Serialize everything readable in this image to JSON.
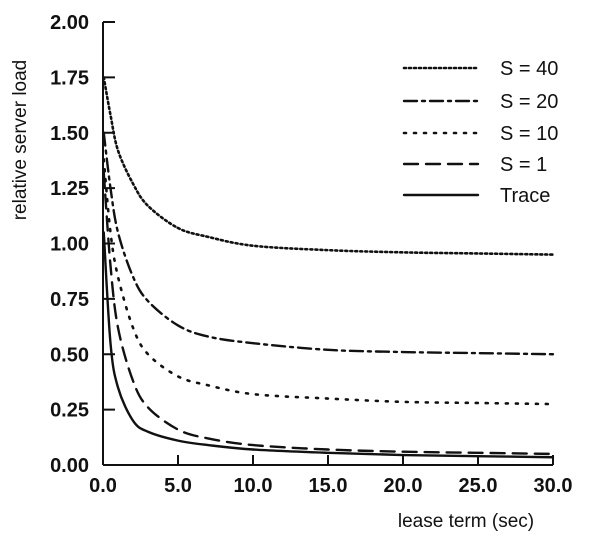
{
  "chart_data": {
    "type": "line",
    "title": "",
    "xlabel": "lease term (sec)",
    "ylabel": "relative server load",
    "xlim": [
      0,
      30
    ],
    "ylim": [
      0,
      2
    ],
    "x_ticks": [
      "0.0",
      "5.0",
      "10.0",
      "15.0",
      "20.0",
      "25.0",
      "30.0"
    ],
    "y_ticks": [
      "0.00",
      "0.25",
      "0.50",
      "0.75",
      "1.00",
      "1.25",
      "1.50",
      "1.75",
      "2.00"
    ],
    "grid": false,
    "legend_position": "top-right",
    "series": [
      {
        "name": "S = 40",
        "style": "dotted-dense",
        "x": [
          0.05,
          0.5,
          1,
          2,
          3,
          5,
          7,
          10,
          15,
          20,
          25,
          30
        ],
        "y": [
          1.75,
          1.58,
          1.42,
          1.27,
          1.17,
          1.07,
          1.03,
          0.99,
          0.97,
          0.96,
          0.955,
          0.95
        ]
      },
      {
        "name": "S = 20",
        "style": "dash-dot",
        "x": [
          0.05,
          0.5,
          1,
          2,
          3,
          5,
          7,
          10,
          15,
          20,
          25,
          30
        ],
        "y": [
          1.5,
          1.25,
          1.05,
          0.85,
          0.74,
          0.63,
          0.58,
          0.55,
          0.52,
          0.51,
          0.505,
          0.5
        ]
      },
      {
        "name": "S = 10",
        "style": "dotted-sparse",
        "x": [
          0.05,
          0.5,
          1,
          2,
          3,
          5,
          7,
          10,
          15,
          20,
          25,
          30
        ],
        "y": [
          1.38,
          1.05,
          0.85,
          0.62,
          0.5,
          0.4,
          0.36,
          0.32,
          0.3,
          0.285,
          0.28,
          0.275
        ]
      },
      {
        "name": "S = 1",
        "style": "dashed",
        "x": [
          0.05,
          0.5,
          1,
          2,
          3,
          5,
          7,
          10,
          15,
          20,
          25,
          30
        ],
        "y": [
          1.32,
          0.9,
          0.62,
          0.38,
          0.26,
          0.16,
          0.12,
          0.09,
          0.07,
          0.06,
          0.055,
          0.05
        ]
      },
      {
        "name": "Trace",
        "style": "solid",
        "x": [
          0.05,
          0.5,
          1,
          2,
          3,
          5,
          7,
          10,
          15,
          20,
          25,
          30
        ],
        "y": [
          1.05,
          0.55,
          0.35,
          0.2,
          0.15,
          0.11,
          0.09,
          0.07,
          0.055,
          0.045,
          0.04,
          0.035
        ]
      }
    ]
  }
}
